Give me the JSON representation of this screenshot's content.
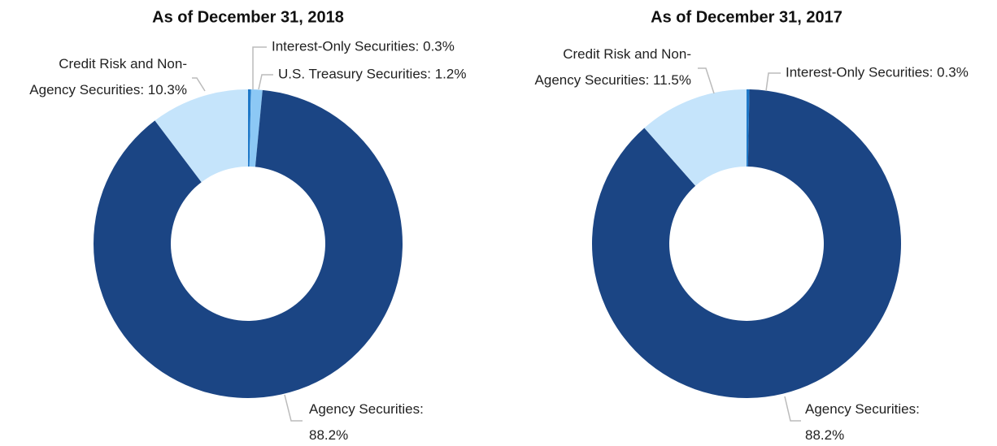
{
  "chart_data": [
    {
      "type": "donut",
      "title": "As of December 31, 2018",
      "labels": [
        "Interest-Only Securities: 0.3%",
        "U.S. Treasury Securities: 1.2%",
        "Agency Securities: 88.2%",
        "Credit Risk and Non-Agency Securities: 10.3%"
      ],
      "values": [
        0.3,
        1.2,
        88.2,
        10.3
      ],
      "colors": [
        "#1f78c8",
        "#8cc8f5",
        "#1b4584",
        "#c5e4fb"
      ]
    },
    {
      "type": "donut",
      "title": "As of December 31, 2017",
      "labels": [
        "Interest-Only Securities: 0.3%",
        "Agency Securities: 88.2%",
        "Credit Risk and Non-Agency Securities: 11.5%"
      ],
      "values": [
        0.3,
        88.2,
        11.5
      ],
      "colors": [
        "#1f78c8",
        "#1b4584",
        "#c5e4fb"
      ]
    }
  ]
}
